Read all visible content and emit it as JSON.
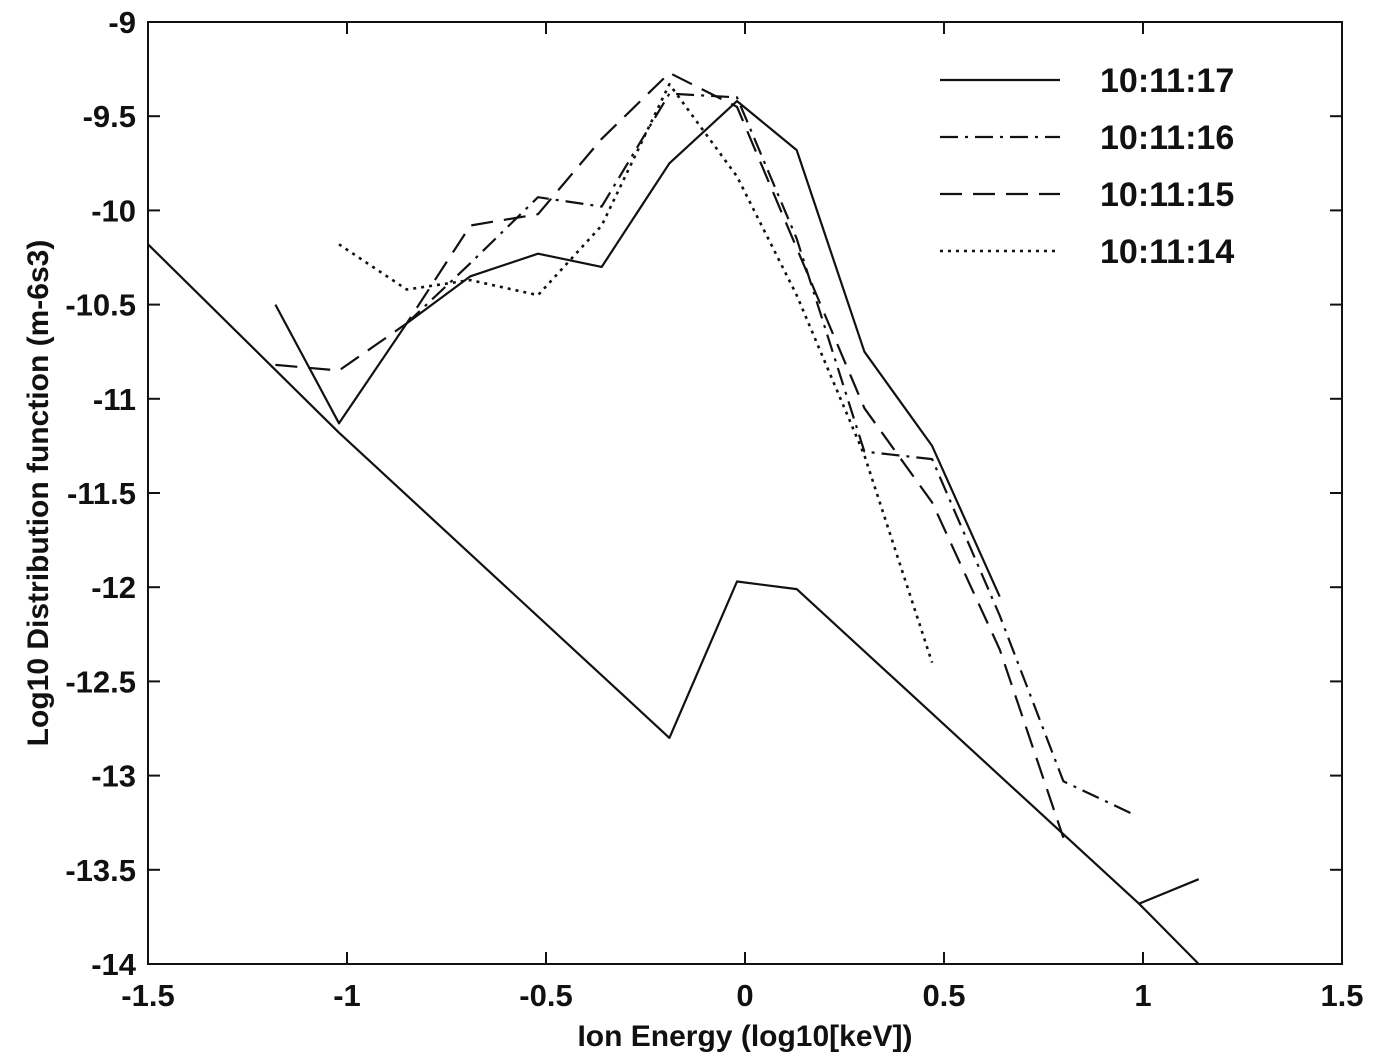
{
  "chart_data": {
    "type": "line",
    "title": "",
    "xlabel": "Ion Energy (log10[keV])",
    "ylabel": "Log10 Distribution function (m-6s3)",
    "xlim": [
      -1.5,
      1.5
    ],
    "ylim": [
      -14,
      -9
    ],
    "x_ticks": [
      -1.5,
      -1,
      -0.5,
      0,
      0.5,
      1,
      1.5
    ],
    "x_tick_labels": [
      "-1.5",
      "-1",
      "-0.5",
      "0",
      "0.5",
      "1",
      "1.5"
    ],
    "y_ticks": [
      -9,
      -9.5,
      -10,
      -10.5,
      -11,
      -11.5,
      -12,
      -12.5,
      -13,
      -13.5,
      -14
    ],
    "y_tick_labels": [
      "-9",
      "-9.5",
      "-10",
      "-10.5",
      "-11",
      "-11.5",
      "-12",
      "-12.5",
      "-13",
      "-13.5",
      "-14"
    ],
    "grid": false,
    "legend_position": "top-right",
    "series": [
      {
        "name": "10:11:17",
        "style": "solid",
        "x": [
          -1.18,
          -1.02,
          -0.85,
          -0.69,
          -0.52,
          -0.36,
          -0.19,
          -0.02,
          0.13,
          0.3,
          0.47,
          0.64
        ],
        "y": [
          -10.5,
          -11.13,
          -10.6,
          -10.35,
          -10.23,
          -10.3,
          -9.75,
          -9.42,
          -9.68,
          -10.75,
          -11.25,
          -12.05
        ]
      },
      {
        "name": "10:11:16",
        "style": "dashdot",
        "x": [
          -0.85,
          -0.69,
          -0.52,
          -0.36,
          -0.19,
          -0.02,
          0.13,
          0.3,
          0.47,
          0.64,
          0.8,
          0.97
        ],
        "y": [
          -10.6,
          -10.28,
          -9.93,
          -9.98,
          -9.38,
          -9.4,
          -10.15,
          -11.28,
          -11.32,
          -12.15,
          -13.03,
          -13.2
        ]
      },
      {
        "name": "10:11:15",
        "style": "dashed",
        "x": [
          -1.18,
          -1.02,
          -0.85,
          -0.69,
          -0.52,
          -0.36,
          -0.19,
          -0.02,
          0.13,
          0.3,
          0.47,
          0.64,
          0.8
        ],
        "y": [
          -10.82,
          -10.85,
          -10.6,
          -10.08,
          -10.02,
          -9.62,
          -9.27,
          -9.45,
          -10.2,
          -11.05,
          -11.55,
          -12.33,
          -13.33
        ]
      },
      {
        "name": "10:11:14",
        "style": "dotted",
        "x": [
          -1.02,
          -0.85,
          -0.69,
          -0.52,
          -0.36,
          -0.19,
          -0.02,
          0.13,
          0.3,
          0.47
        ],
        "y": [
          -10.18,
          -10.42,
          -10.37,
          -10.45,
          -10.08,
          -9.33,
          -9.82,
          -10.45,
          -11.3,
          -12.4
        ]
      },
      {
        "name": "",
        "style": "solid",
        "x": [
          -1.5,
          -1.02,
          -0.19,
          -0.02,
          0.13,
          0.99,
          1.14
        ],
        "y": [
          -10.18,
          -11.18,
          -12.8,
          -11.97,
          -12.01,
          -13.68,
          -14.0
        ]
      },
      {
        "name": "",
        "style": "solid",
        "x": [
          0.99,
          1.14
        ],
        "y": [
          -13.68,
          -13.55
        ]
      }
    ]
  }
}
